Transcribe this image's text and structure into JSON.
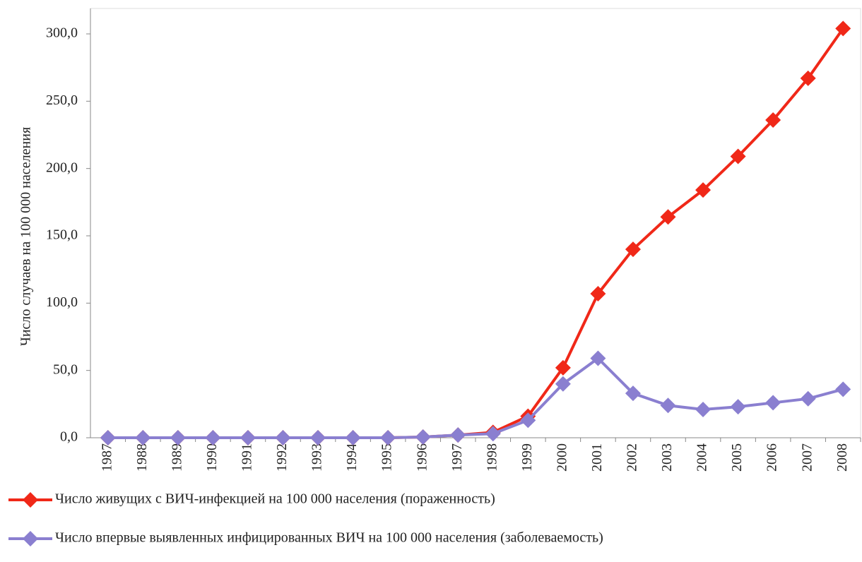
{
  "chart_data": {
    "type": "line",
    "y_label": "Число случаев на 100 000 населения",
    "categories": [
      "1987",
      "1988",
      "1989",
      "1990",
      "1991",
      "1992",
      "1993",
      "1994",
      "1995",
      "1996",
      "1997",
      "1998",
      "1999",
      "2000",
      "2001",
      "2002",
      "2003",
      "2004",
      "2005",
      "2006",
      "2007",
      "2008"
    ],
    "series": [
      {
        "name": "Число живущих с ВИЧ-инфекцией на 100 000 населения (пораженность)",
        "color": "#f02818",
        "values": [
          0,
          0,
          0,
          0,
          0,
          0,
          0,
          0,
          0,
          0.5,
          2,
          4,
          16,
          52,
          107,
          140,
          164,
          184,
          209,
          236,
          267,
          304
        ]
      },
      {
        "name": "Число впервые выявленных инфицированных ВИЧ на 100 000 населения (заболеваемость)",
        "color": "#8a7fd0",
        "values": [
          0,
          0,
          0,
          0,
          0,
          0,
          0,
          0,
          0,
          0.5,
          2,
          3,
          13,
          40,
          59,
          33,
          24,
          21,
          23,
          26,
          29,
          36
        ]
      }
    ],
    "ylim": [
      0,
      300
    ],
    "yticks": [
      {
        "value": 0,
        "label": "0,0"
      },
      {
        "value": 50,
        "label": "50,0"
      },
      {
        "value": 100,
        "label": "100,0"
      },
      {
        "value": 150,
        "label": "150,0"
      },
      {
        "value": 200,
        "label": "200,0"
      },
      {
        "value": 250,
        "label": "250,0"
      },
      {
        "value": 300,
        "label": "300,0"
      }
    ]
  }
}
